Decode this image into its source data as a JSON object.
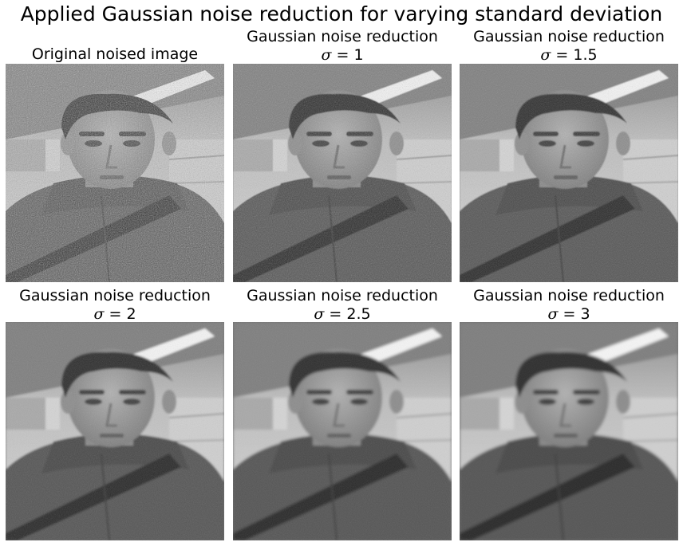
{
  "figure": {
    "title": "Applied Gaussian noise reduction for varying standard deviation"
  },
  "panels": [
    {
      "line1": "",
      "line2": "Original noised image",
      "sigma": "",
      "noise": 1.0,
      "blur": 0.0
    },
    {
      "line1": "Gaussian noise reduction",
      "sigma_symbol": "σ",
      "sigma": "1",
      "noise": 0.55,
      "blur": 0.6
    },
    {
      "line1": "Gaussian noise reduction",
      "sigma_symbol": "σ",
      "sigma": "1.5",
      "noise": 0.4,
      "blur": 0.9
    },
    {
      "line1": "Gaussian noise reduction",
      "sigma_symbol": "σ",
      "sigma": "2",
      "noise": 0.3,
      "blur": 1.2
    },
    {
      "line1": "Gaussian noise reduction",
      "sigma_symbol": "σ",
      "sigma": "2.5",
      "noise": 0.22,
      "blur": 1.5
    },
    {
      "line1": "Gaussian noise reduction",
      "sigma_symbol": "σ",
      "sigma": "3",
      "noise": 0.15,
      "blur": 1.8
    }
  ]
}
